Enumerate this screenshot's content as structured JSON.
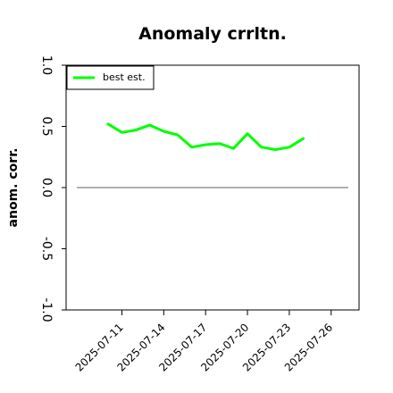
{
  "chart_data": {
    "type": "line",
    "title": "Anomaly crrltn.",
    "xlabel": "",
    "ylabel": "anom. corr.",
    "x": [
      "2025-07-10",
      "2025-07-11",
      "2025-07-12",
      "2025-07-13",
      "2025-07-14",
      "2025-07-15",
      "2025-07-16",
      "2025-07-17",
      "2025-07-18",
      "2025-07-19",
      "2025-07-20",
      "2025-07-21",
      "2025-07-22",
      "2025-07-23",
      "2025-07-24"
    ],
    "series": [
      {
        "name": "best est.",
        "color": "#00ff00",
        "values": [
          0.52,
          0.45,
          0.47,
          0.51,
          0.46,
          0.43,
          0.33,
          0.35,
          0.36,
          0.32,
          0.44,
          0.33,
          0.31,
          0.33,
          0.4
        ]
      }
    ],
    "reference_line": {
      "y": 0.0,
      "x_range": [
        "2025-07-07",
        "2025-07-28"
      ],
      "color": "#808080"
    },
    "xlim": [
      "2025-07-07",
      "2025-07-28"
    ],
    "ylim": [
      -1.0,
      1.0
    ],
    "xticks": [
      "2025-07-11",
      "2025-07-14",
      "2025-07-17",
      "2025-07-20",
      "2025-07-23",
      "2025-07-26"
    ],
    "yticks": [
      -1.0,
      -0.5,
      0.0,
      0.5,
      1.0
    ],
    "ytick_labels": [
      "-1.0",
      "-0.5",
      "0.0",
      "0.5",
      "1.0"
    ],
    "grid": false,
    "legend": "top-left"
  }
}
